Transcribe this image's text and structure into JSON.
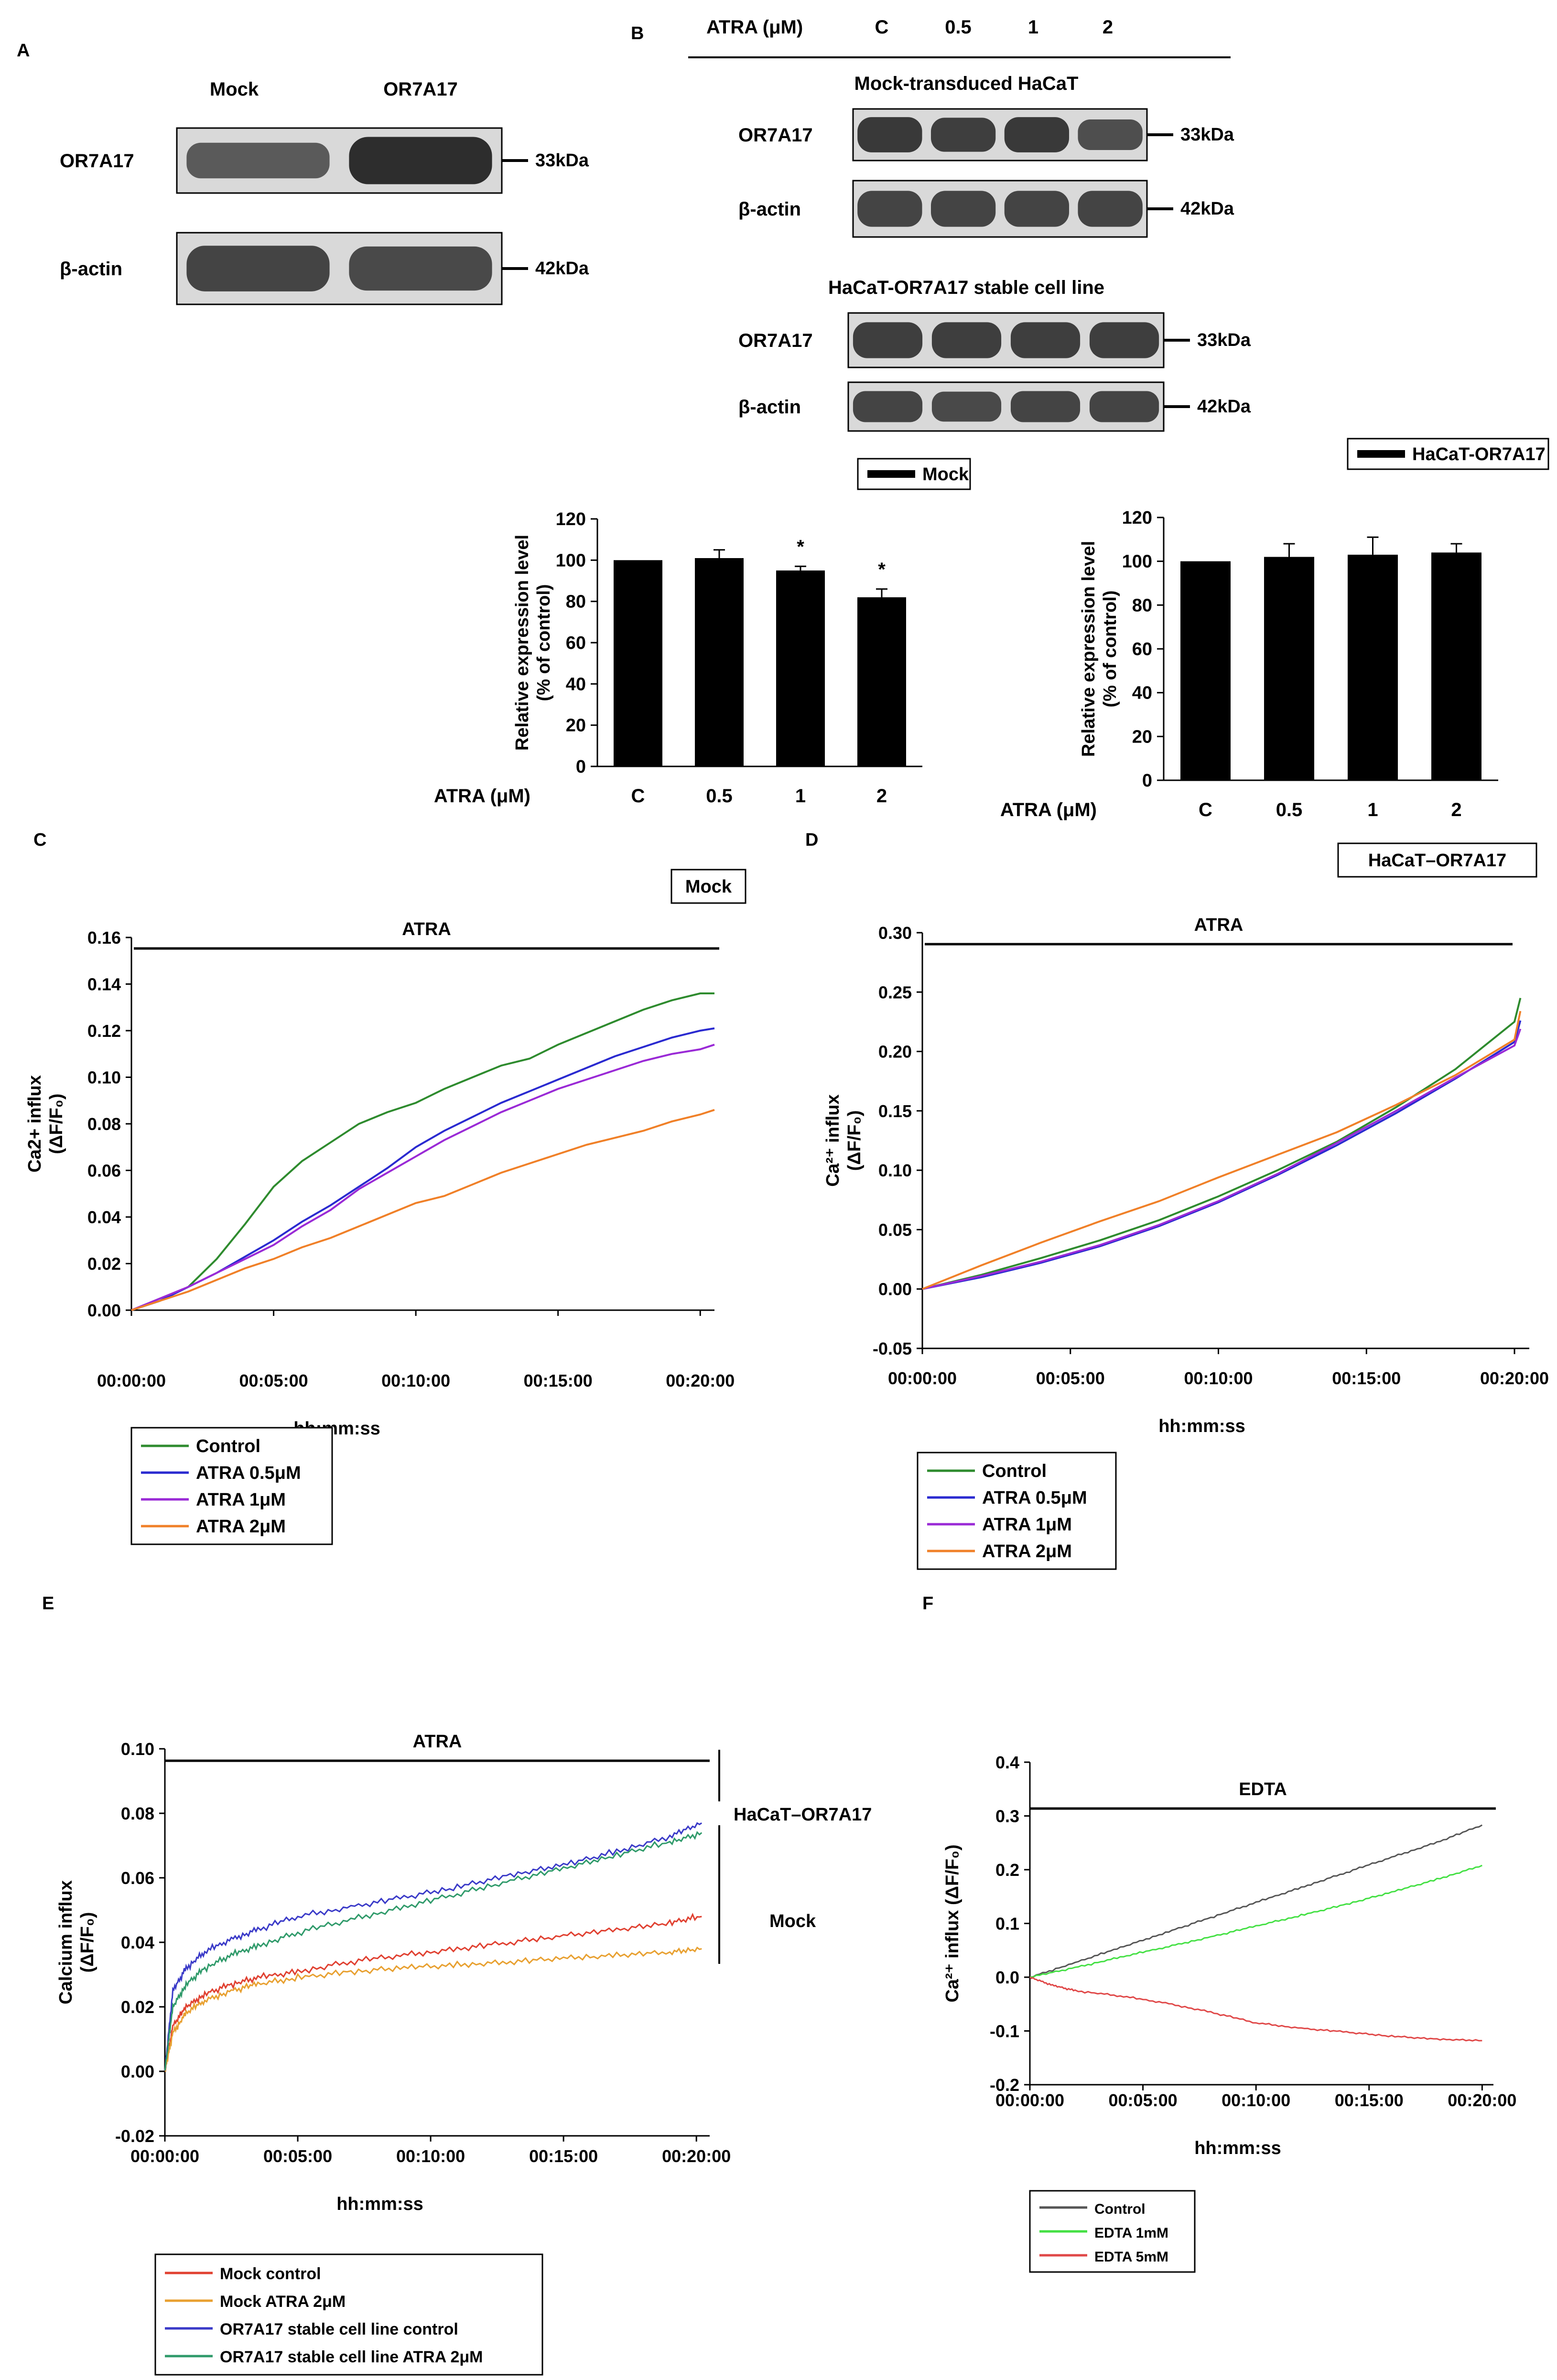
{
  "figure": {
    "colors": {
      "blot_bg": "#d9d9d9",
      "band": "#1e1e1e",
      "bar": "#000000"
    },
    "panel_a": {
      "letter": "A",
      "lanes": [
        "Mock",
        "OR7A17"
      ],
      "rows": [
        {
          "label": "OR7A17",
          "kda": "33kDa",
          "intensity": [
            0.55,
            0.95
          ]
        },
        {
          "label": "β-actin",
          "kda": "42kDa",
          "intensity": [
            0.75,
            0.7
          ]
        }
      ]
    },
    "panel_b": {
      "letter": "B",
      "header": "ATRA (μM)",
      "lanes": [
        "C",
        "0.5",
        "1",
        "2"
      ],
      "groups": [
        {
          "title": "Mock-transduced HaCaT",
          "rows": [
            {
              "label": "OR7A17",
              "kda": "33kDa",
              "intensity": [
                0.85,
                0.8,
                0.85,
                0.65
              ]
            },
            {
              "label": "β-actin",
              "kda": "42kDa",
              "intensity": [
                0.75,
                0.75,
                0.75,
                0.75
              ]
            }
          ]
        },
        {
          "title": "HaCaT-OR7A17 stable cell line",
          "rows": [
            {
              "label": "OR7A17",
              "kda": "33kDa",
              "intensity": [
                0.8,
                0.8,
                0.8,
                0.8
              ]
            },
            {
              "label": "β-actin",
              "kda": "42kDa",
              "intensity": [
                0.75,
                0.7,
                0.75,
                0.75
              ]
            }
          ]
        }
      ]
    }
  },
  "chart_data": [
    {
      "id": "b1",
      "type": "bar",
      "legend": "Mock",
      "categories": [
        "C",
        "0.5",
        "1",
        "2"
      ],
      "values": [
        100,
        101,
        95,
        82
      ],
      "errors": [
        0,
        4,
        2,
        4
      ],
      "significance": [
        "",
        "",
        "*",
        "*"
      ],
      "ylabel": "Relative expression level",
      "ylabel2": "(% of control)",
      "xlabel": "ATRA (μM)",
      "ylim": [
        0,
        120
      ],
      "yticks": [
        "0",
        "20",
        "40",
        "60",
        "80",
        "100",
        "120"
      ]
    },
    {
      "id": "b2",
      "type": "bar",
      "legend": "HaCaT-OR7A17",
      "categories": [
        "C",
        "0.5",
        "1",
        "2"
      ],
      "values": [
        100,
        102,
        103,
        104
      ],
      "errors": [
        0,
        6,
        8,
        4
      ],
      "significance": [
        "",
        "",
        "",
        ""
      ],
      "ylabel": "Relative expression level",
      "ylabel2": "(% of control)",
      "xlabel": "ATRA (μM)",
      "ylim": [
        0,
        120
      ],
      "yticks": [
        "0",
        "20",
        "40",
        "60",
        "80",
        "100",
        "120"
      ]
    },
    {
      "id": "c",
      "letter": "C",
      "type": "line",
      "box": "Mock",
      "bar_label": "ATRA",
      "ylabel": "Ca2+ influx",
      "ylabel2": "(ΔF/F₀)",
      "xlabel": "hh:mm:ss",
      "xlim": [
        0,
        20.5
      ],
      "ylim": [
        0,
        0.16
      ],
      "yticks": [
        "0.00",
        "0.02",
        "0.04",
        "0.06",
        "0.08",
        "0.10",
        "0.12",
        "0.14",
        "0.16"
      ],
      "xticks": [
        "00:00:00",
        "00:05:00",
        "00:10:00",
        "00:15:00",
        "00:20:00"
      ],
      "series": [
        {
          "name": "Control",
          "color": "#2e8b2e",
          "x": [
            0,
            1,
            2,
            3,
            4,
            5,
            6,
            7,
            8,
            9,
            10,
            11,
            12,
            13,
            14,
            15,
            16,
            17,
            18,
            19,
            20,
            20.5
          ],
          "y": [
            0,
            0.004,
            0.01,
            0.022,
            0.037,
            0.053,
            0.064,
            0.072,
            0.08,
            0.085,
            0.089,
            0.095,
            0.1,
            0.105,
            0.108,
            0.114,
            0.119,
            0.124,
            0.129,
            0.133,
            0.136,
            0.136
          ]
        },
        {
          "name": "ATRA 0.5μM",
          "color": "#2a2ad0",
          "x": [
            0,
            1,
            2,
            3,
            4,
            5,
            6,
            7,
            8,
            9,
            10,
            11,
            12,
            13,
            14,
            15,
            16,
            17,
            18,
            19,
            20,
            20.5
          ],
          "y": [
            0,
            0.004,
            0.01,
            0.016,
            0.023,
            0.03,
            0.038,
            0.045,
            0.053,
            0.061,
            0.07,
            0.077,
            0.083,
            0.089,
            0.094,
            0.099,
            0.104,
            0.109,
            0.113,
            0.117,
            0.12,
            0.121
          ]
        },
        {
          "name": "ATRA 1μM",
          "color": "#9a2ad6",
          "x": [
            0,
            1,
            2,
            3,
            4,
            5,
            6,
            7,
            8,
            9,
            10,
            11,
            12,
            13,
            14,
            15,
            16,
            17,
            18,
            19,
            20,
            20.5
          ],
          "y": [
            0,
            0.005,
            0.01,
            0.016,
            0.022,
            0.028,
            0.036,
            0.043,
            0.052,
            0.059,
            0.066,
            0.073,
            0.079,
            0.085,
            0.09,
            0.095,
            0.099,
            0.103,
            0.107,
            0.11,
            0.112,
            0.114
          ]
        },
        {
          "name": "ATRA 2μM",
          "color": "#f08028",
          "x": [
            0,
            1,
            2,
            3,
            4,
            5,
            6,
            7,
            8,
            9,
            10,
            11,
            12,
            13,
            14,
            15,
            16,
            17,
            18,
            19,
            20,
            20.5
          ],
          "y": [
            0,
            0.004,
            0.008,
            0.013,
            0.018,
            0.022,
            0.027,
            0.031,
            0.036,
            0.041,
            0.046,
            0.049,
            0.054,
            0.059,
            0.063,
            0.067,
            0.071,
            0.074,
            0.077,
            0.081,
            0.084,
            0.086
          ]
        }
      ]
    },
    {
      "id": "d",
      "letter": "D",
      "type": "line",
      "box": "HaCaT–OR7A17",
      "bar_label": "ATRA",
      "ylabel": "Ca²⁺ influx",
      "ylabel2": "(ΔF/F₀)",
      "xlabel": "hh:mm:ss",
      "xlim": [
        0,
        20.5
      ],
      "ylim": [
        -0.05,
        0.3
      ],
      "yticks": [
        "-0.05",
        "0.00",
        "0.05",
        "0.10",
        "0.15",
        "0.20",
        "0.25",
        "0.30"
      ],
      "xticks": [
        "00:00:00",
        "00:05:00",
        "00:10:00",
        "00:15:00",
        "00:20:00"
      ],
      "series": [
        {
          "name": "Control",
          "color": "#2e8b2e",
          "x": [
            0,
            2,
            4,
            6,
            8,
            10,
            12,
            14,
            16,
            18,
            20,
            20.2
          ],
          "y": [
            0,
            0.012,
            0.026,
            0.041,
            0.058,
            0.078,
            0.1,
            0.124,
            0.153,
            0.185,
            0.225,
            0.245
          ]
        },
        {
          "name": "ATRA 0.5μM",
          "color": "#2a2ad0",
          "x": [
            0,
            2,
            4,
            6,
            8,
            10,
            12,
            14,
            16,
            18,
            20,
            20.2
          ],
          "y": [
            0,
            0.01,
            0.022,
            0.036,
            0.053,
            0.073,
            0.096,
            0.121,
            0.148,
            0.177,
            0.208,
            0.226
          ]
        },
        {
          "name": "ATRA 1μM",
          "color": "#9a2ad6",
          "x": [
            0,
            2,
            4,
            6,
            8,
            10,
            12,
            14,
            16,
            18,
            20,
            20.2
          ],
          "y": [
            0,
            0.011,
            0.023,
            0.037,
            0.054,
            0.074,
            0.097,
            0.123,
            0.15,
            0.178,
            0.205,
            0.219
          ]
        },
        {
          "name": "ATRA 2μM",
          "color": "#f08028",
          "x": [
            0,
            2,
            4,
            6,
            8,
            10,
            12,
            14,
            16,
            18,
            20,
            20.2
          ],
          "y": [
            0,
            0.02,
            0.039,
            0.057,
            0.074,
            0.094,
            0.113,
            0.132,
            0.155,
            0.18,
            0.21,
            0.234
          ]
        }
      ]
    },
    {
      "id": "e",
      "letter": "E",
      "type": "line",
      "bar_label": "ATRA",
      "ylabel": "Calcium influx",
      "ylabel2": "(ΔF/F₀)",
      "xlabel": "hh:mm:ss",
      "xlim": [
        0,
        20.5
      ],
      "ylim": [
        -0.02,
        0.1
      ],
      "yticks": [
        "-0.02",
        "0.00",
        "0.02",
        "0.04",
        "0.06",
        "0.08",
        "0.10"
      ],
      "xticks": [
        "00:00:00",
        "00:05:00",
        "00:10:00",
        "00:15:00",
        "00:20:00"
      ],
      "bracket_labels": [
        "HaCaT–OR7A17",
        "Mock"
      ],
      "series": [
        {
          "name": "Mock control",
          "color": "#e04030",
          "x": [
            0,
            0.3,
            0.8,
            1.5,
            2.5,
            3.5,
            5,
            7,
            9,
            11,
            13,
            15,
            17,
            19,
            20.2
          ],
          "y": [
            0,
            0.014,
            0.02,
            0.024,
            0.027,
            0.029,
            0.031,
            0.034,
            0.036,
            0.038,
            0.04,
            0.042,
            0.044,
            0.046,
            0.048
          ]
        },
        {
          "name": "Mock ATRA 2μM",
          "color": "#e8a030",
          "x": [
            0,
            0.3,
            0.8,
            1.5,
            2.5,
            3.5,
            5,
            7,
            9,
            11,
            13,
            15,
            17,
            19,
            20.2
          ],
          "y": [
            0,
            0.012,
            0.018,
            0.022,
            0.025,
            0.027,
            0.029,
            0.031,
            0.032,
            0.033,
            0.034,
            0.035,
            0.036,
            0.037,
            0.038
          ]
        },
        {
          "name": "OR7A17 stable cell line control",
          "color": "#3a3ac8",
          "x": [
            0,
            0.3,
            0.8,
            1.5,
            2.5,
            3.5,
            5,
            7,
            9,
            11,
            13,
            15,
            17,
            19,
            20.2
          ],
          "y": [
            0,
            0.025,
            0.032,
            0.037,
            0.041,
            0.044,
            0.048,
            0.051,
            0.054,
            0.057,
            0.061,
            0.064,
            0.068,
            0.073,
            0.077
          ]
        },
        {
          "name": "OR7A17 stable cell line ATRA 2μM",
          "color": "#2f9a6a",
          "x": [
            0,
            0.3,
            0.8,
            1.5,
            2.5,
            3.5,
            5,
            7,
            9,
            11,
            13,
            15,
            17,
            19,
            20.2
          ],
          "y": [
            0,
            0.02,
            0.027,
            0.032,
            0.036,
            0.039,
            0.043,
            0.047,
            0.051,
            0.055,
            0.059,
            0.063,
            0.067,
            0.071,
            0.074
          ]
        }
      ]
    },
    {
      "id": "f",
      "letter": "F",
      "type": "line",
      "bar_label": "EDTA",
      "ylabel": "Ca²⁺ influx (ΔF/F₀)",
      "ylabel2": "",
      "xlabel": "hh:mm:ss",
      "xlim": [
        0,
        20.5
      ],
      "ylim": [
        -0.2,
        0.4
      ],
      "yticks": [
        "-0.2",
        "-0.1",
        "0.0",
        "0.1",
        "0.2",
        "0.3",
        "0.4"
      ],
      "xticks": [
        "00:00:00",
        "00:05:00",
        "00:10:00",
        "00:15:00",
        "00:20:00"
      ],
      "series": [
        {
          "name": "Control",
          "color": "#555555",
          "x": [
            0,
            2,
            4,
            6,
            8,
            10,
            12,
            14,
            16,
            18,
            20
          ],
          "y": [
            0,
            0.027,
            0.055,
            0.083,
            0.111,
            0.139,
            0.167,
            0.195,
            0.223,
            0.251,
            0.283
          ]
        },
        {
          "name": "EDTA 1mM",
          "color": "#44e044",
          "x": [
            0,
            2,
            4,
            6,
            8,
            10,
            12,
            14,
            16,
            18,
            20
          ],
          "y": [
            0,
            0.018,
            0.037,
            0.056,
            0.075,
            0.095,
            0.115,
            0.136,
            0.158,
            0.182,
            0.208
          ]
        },
        {
          "name": "EDTA 5mM",
          "color": "#e04848",
          "x": [
            0,
            1,
            2,
            4,
            6,
            8,
            10,
            12,
            14,
            16,
            18,
            20
          ],
          "y": [
            0,
            -0.015,
            -0.025,
            -0.035,
            -0.048,
            -0.065,
            -0.085,
            -0.095,
            -0.102,
            -0.11,
            -0.115,
            -0.118
          ]
        }
      ]
    }
  ]
}
